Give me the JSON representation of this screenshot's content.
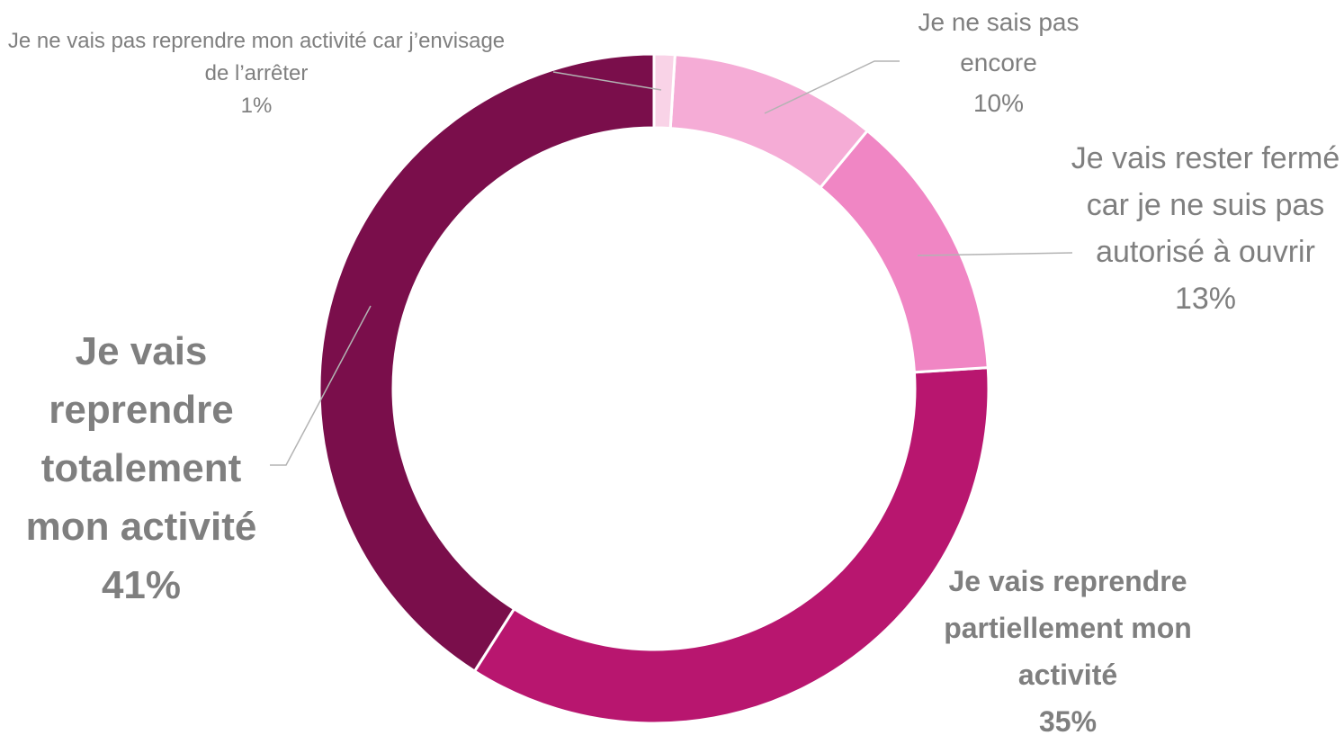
{
  "chart_data": {
    "type": "donut",
    "categories": [
      "Je ne vais pas reprendre mon activité car j’envisage de l’arrêter",
      "Je ne sais pas encore",
      "Je vais rester fermé car je ne suis pas autorisé à ouvrir",
      "Je vais reprendre partiellement mon activité",
      "Je vais reprendre totalement mon activité"
    ],
    "values": [
      1,
      10,
      13,
      35,
      41
    ],
    "value_labels": [
      "1%",
      "10%",
      "13%",
      "35%",
      "41%"
    ],
    "colors": [
      "#f9d3e7",
      "#f5acd6",
      "#f086c4",
      "#b8166f",
      "#7a0e4b"
    ]
  }
}
